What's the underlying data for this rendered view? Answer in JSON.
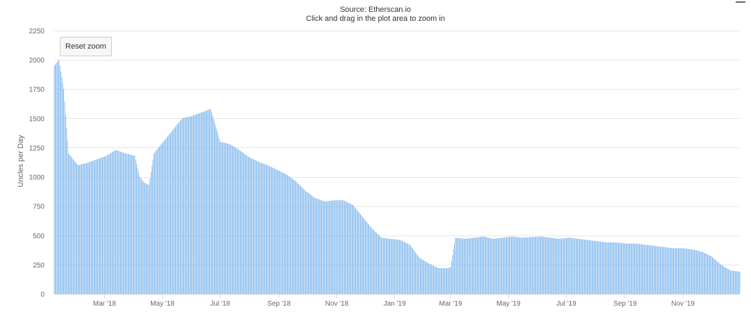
{
  "header": {
    "source": "Source: Etherscan.io",
    "hint": "Click and drag in the plot area to zoom in"
  },
  "controls": {
    "reset_zoom": "Reset zoom"
  },
  "chart_data": {
    "type": "bar",
    "title": "",
    "ylabel": "Uncles per Day",
    "xlabel": "",
    "ylim": [
      0,
      2250
    ],
    "yticks": [
      0,
      250,
      500,
      750,
      1000,
      1250,
      1500,
      1750,
      2000,
      2250
    ],
    "xlim": [
      "2018-01-07",
      "2019-12-31"
    ],
    "xticks": [
      {
        "date": "2018-03-01",
        "label": "Mar '18"
      },
      {
        "date": "2018-05-01",
        "label": "May '18"
      },
      {
        "date": "2018-07-01",
        "label": "Jul '18"
      },
      {
        "date": "2018-09-01",
        "label": "Sep '18"
      },
      {
        "date": "2018-11-01",
        "label": "Nov '18"
      },
      {
        "date": "2019-01-01",
        "label": "Jan '19"
      },
      {
        "date": "2019-03-01",
        "label": "Mar '19"
      },
      {
        "date": "2019-05-01",
        "label": "May '19"
      },
      {
        "date": "2019-07-01",
        "label": "Jul '19"
      },
      {
        "date": "2019-09-01",
        "label": "Sep '19"
      },
      {
        "date": "2019-11-01",
        "label": "Nov '19"
      }
    ],
    "grid": true,
    "color": "#7cb5ec",
    "series": [
      {
        "x": [
          "2018-01-07",
          "2018-01-12",
          "2018-01-17",
          "2018-01-22",
          "2018-02-01",
          "2018-02-11",
          "2018-02-21",
          "2018-03-03",
          "2018-03-13",
          "2018-03-23",
          "2018-04-02",
          "2018-04-07",
          "2018-04-12",
          "2018-04-17",
          "2018-04-22",
          "2018-05-02",
          "2018-05-12",
          "2018-05-22",
          "2018-06-01",
          "2018-06-11",
          "2018-06-21",
          "2018-07-01",
          "2018-07-11",
          "2018-07-21",
          "2018-07-31",
          "2018-08-10",
          "2018-08-20",
          "2018-08-30",
          "2018-09-09",
          "2018-09-19",
          "2018-09-29",
          "2018-10-09",
          "2018-10-19",
          "2018-10-29",
          "2018-11-08",
          "2018-11-18",
          "2018-11-28",
          "2018-12-08",
          "2018-12-18",
          "2018-12-28",
          "2019-01-07",
          "2019-01-17",
          "2019-01-27",
          "2019-02-06",
          "2019-02-16",
          "2019-02-26",
          "2019-03-01",
          "2019-03-06",
          "2019-03-16",
          "2019-03-26",
          "2019-04-05",
          "2019-04-15",
          "2019-04-25",
          "2019-05-05",
          "2019-05-15",
          "2019-05-25",
          "2019-06-04",
          "2019-06-14",
          "2019-06-24",
          "2019-07-04",
          "2019-07-14",
          "2019-07-24",
          "2019-08-03",
          "2019-08-13",
          "2019-08-23",
          "2019-09-02",
          "2019-09-12",
          "2019-09-22",
          "2019-10-02",
          "2019-10-12",
          "2019-10-22",
          "2019-11-01",
          "2019-11-11",
          "2019-11-21",
          "2019-12-01",
          "2019-12-11",
          "2019-12-21",
          "2019-12-31"
        ],
        "values": [
          1950,
          2000,
          1750,
          1200,
          1100,
          1120,
          1150,
          1180,
          1230,
          1200,
          1180,
          1000,
          950,
          930,
          1200,
          1300,
          1400,
          1500,
          1520,
          1550,
          1580,
          1300,
          1280,
          1230,
          1170,
          1130,
          1100,
          1060,
          1020,
          960,
          880,
          820,
          790,
          800,
          800,
          760,
          660,
          560,
          480,
          470,
          460,
          420,
          310,
          260,
          220,
          220,
          230,
          480,
          470,
          480,
          490,
          470,
          480,
          490,
          480,
          485,
          490,
          480,
          470,
          480,
          470,
          460,
          450,
          440,
          440,
          430,
          430,
          420,
          410,
          400,
          390,
          390,
          380,
          360,
          320,
          250,
          200,
          190
        ]
      }
    ]
  }
}
